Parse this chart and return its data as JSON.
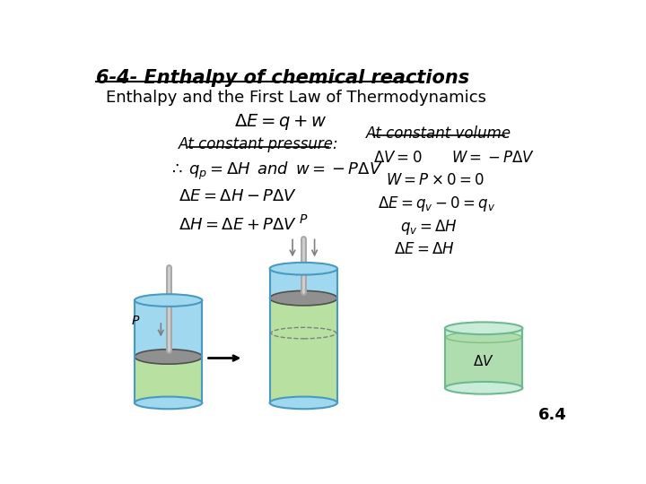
{
  "title_line1": "6-4- Enthalpy of chemical reactions",
  "title_line2": "Enthalpy and the First Law of Thermodynamics",
  "bg_color": "#ffffff",
  "page_num": "6.4"
}
